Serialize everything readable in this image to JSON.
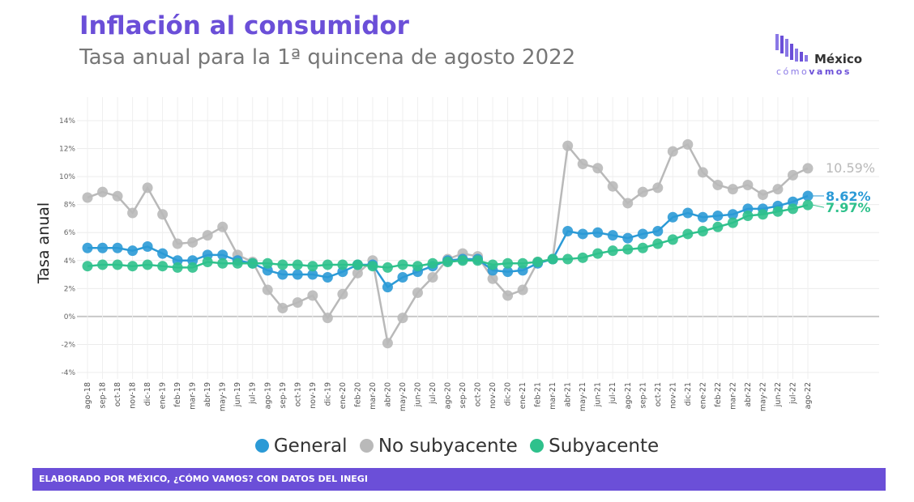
{
  "header": {
    "title": "Inflación al consumidor",
    "subtitle": "Tasa anual para la 1ª quincena de agosto 2022"
  },
  "logo": {
    "word": "México",
    "sub_a": "cómo",
    "sub_b": "vamos"
  },
  "footer": {
    "text": "ELABORADO POR MÉXICO, ¿CÓMO VAMOS? CON DATOS DEL INEGI"
  },
  "chart_data": {
    "type": "line",
    "title": "Inflación al consumidor",
    "subtitle": "Tasa anual para la 1ª quincena de agosto 2022",
    "xlabel": "",
    "ylabel": "Tasa anual",
    "ylim": [
      -4,
      14
    ],
    "yticks": [
      "-4%",
      "-2%",
      "0%",
      "2%",
      "4%",
      "6%",
      "8%",
      "10%",
      "12%",
      "14%"
    ],
    "ytick_values": [
      -4,
      -2,
      0,
      2,
      4,
      6,
      8,
      10,
      12,
      14
    ],
    "grid": true,
    "legend_position": "bottom",
    "categories": [
      "ago-18",
      "sep-18",
      "oct-18",
      "nov-18",
      "dic-18",
      "ene-19",
      "feb-19",
      "mar-19",
      "abr-19",
      "may-19",
      "jun-19",
      "jul-19",
      "ago-19",
      "sep-19",
      "oct-19",
      "nov-19",
      "dic-19",
      "ene-20",
      "feb-20",
      "mar-20",
      "abr-20",
      "may-20",
      "jun-20",
      "jul-20",
      "ago-20",
      "sep-20",
      "oct-20",
      "nov-20",
      "dic-20",
      "ene-21",
      "feb-21",
      "mar-21",
      "abr-21",
      "may-21",
      "jun-21",
      "jul-21",
      "ago-21",
      "sep-21",
      "oct-21",
      "nov-21",
      "dic-21",
      "ene-22",
      "feb-22",
      "mar-22",
      "abr-22",
      "may-22",
      "jun-22",
      "jul-22",
      "ago-22"
    ],
    "series": [
      {
        "name": "No subyacente",
        "color": "#b9b9b9",
        "end_label": "10.59%",
        "values": [
          8.5,
          8.9,
          8.6,
          7.4,
          9.2,
          7.3,
          5.2,
          5.3,
          5.8,
          6.4,
          4.4,
          3.9,
          1.9,
          0.6,
          1.0,
          1.5,
          -0.1,
          1.6,
          3.1,
          4.0,
          -1.9,
          -0.1,
          1.7,
          2.8,
          4.1,
          4.5,
          4.3,
          2.7,
          1.5,
          1.9,
          3.9,
          4.1,
          12.2,
          10.9,
          10.6,
          9.3,
          8.1,
          8.9,
          9.2,
          11.8,
          12.3,
          10.3,
          9.4,
          9.1,
          9.4,
          8.7,
          9.1,
          10.1,
          10.59
        ]
      },
      {
        "name": "General",
        "color": "#2b9ad6",
        "end_label": "8.62%",
        "values": [
          4.9,
          4.9,
          4.9,
          4.7,
          5.0,
          4.5,
          4.0,
          4.0,
          4.4,
          4.4,
          4.0,
          3.8,
          3.3,
          3.0,
          3.0,
          3.0,
          2.8,
          3.2,
          3.7,
          3.7,
          2.1,
          2.8,
          3.2,
          3.6,
          4.0,
          4.1,
          4.1,
          3.3,
          3.2,
          3.3,
          3.8,
          4.1,
          6.1,
          5.9,
          6.0,
          5.8,
          5.6,
          5.9,
          6.1,
          7.1,
          7.4,
          7.1,
          7.2,
          7.3,
          7.7,
          7.7,
          7.9,
          8.2,
          8.62
        ]
      },
      {
        "name": "Subyacente",
        "color": "#2fc18c",
        "end_label": "7.97%",
        "values": [
          3.6,
          3.7,
          3.7,
          3.6,
          3.7,
          3.6,
          3.5,
          3.5,
          3.9,
          3.8,
          3.8,
          3.8,
          3.8,
          3.7,
          3.7,
          3.6,
          3.7,
          3.7,
          3.7,
          3.6,
          3.5,
          3.7,
          3.6,
          3.8,
          3.9,
          4.0,
          4.0,
          3.7,
          3.8,
          3.8,
          3.9,
          4.1,
          4.1,
          4.2,
          4.5,
          4.7,
          4.8,
          4.9,
          5.2,
          5.5,
          5.9,
          6.1,
          6.4,
          6.7,
          7.2,
          7.3,
          7.5,
          7.7,
          7.97
        ]
      }
    ],
    "legend": [
      "General",
      "No subyacente",
      "Subyacente"
    ]
  }
}
